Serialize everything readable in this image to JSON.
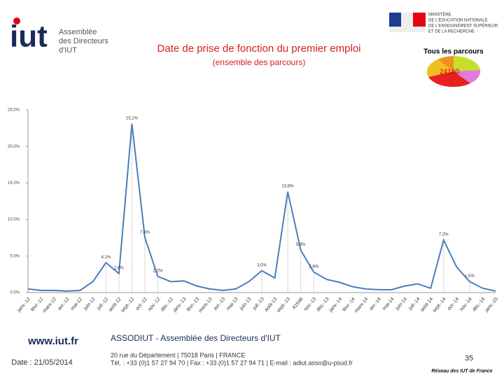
{
  "header": {
    "logo_text": "iut",
    "logo_caption": [
      "Assemblée",
      "des Directeurs",
      "d'IUT"
    ],
    "ministry": [
      "MINISTÈRE",
      "DE L'ÉDUCATION NATIONALE",
      "DE L'ENSEIGNEMENT SUPÉRIEUR",
      "ET DE LA RECHERCHE"
    ]
  },
  "inset": {
    "title": "Tous les parcours",
    "label": "24180"
  },
  "chart_data": {
    "type": "line",
    "title": "Date de prise de fonction du premier emploi",
    "subtitle": "(ensemble des parcours)",
    "categories": [
      "janv.-12",
      "févr.-12",
      "mars-12",
      "avr.-12",
      "mai-12",
      "juin-12",
      "juil.-12",
      "août-12",
      "sept.-12",
      "oct.-12",
      "nov.-12",
      "déc.-12",
      "janv.-13",
      "févr.-13",
      "mars-13",
      "avr.-13",
      "mai-13",
      "juin-13",
      "juil.-13",
      "août-13",
      "sept.-13",
      "41548",
      "nov.-13",
      "déc.-13",
      "janv.-14",
      "févr.-14",
      "mars-14",
      "avr.-14",
      "mai-14",
      "juin-14",
      "juil.-14",
      "août-14",
      "sept.-14",
      "oct.-14",
      "nov.-14",
      "déc.-14",
      "janv.-15"
    ],
    "series": [
      {
        "name": "Tous les parcours",
        "color": "#4a7ebb",
        "values": [
          0.5,
          0.3,
          0.3,
          0.2,
          0.3,
          1.5,
          4.1,
          2.6,
          23.1,
          7.5,
          2.2,
          1.5,
          1.6,
          0.9,
          0.5,
          0.3,
          0.5,
          1.5,
          3.0,
          2.0,
          13.8,
          5.8,
          2.8,
          1.8,
          1.4,
          0.8,
          0.5,
          0.4,
          0.4,
          0.9,
          1.2,
          0.6,
          7.2,
          3.5,
          1.5,
          0.6,
          0.2
        ],
        "value_labels": [
          null,
          null,
          null,
          null,
          null,
          null,
          "4,1%",
          "2,6%",
          "23,1%",
          "7,5%",
          "2,2%",
          null,
          null,
          null,
          null,
          null,
          null,
          null,
          "3,0%",
          null,
          "13,8%",
          "5,8%",
          "2,8%",
          null,
          null,
          null,
          null,
          null,
          null,
          null,
          null,
          null,
          "7,2%",
          null,
          "1,5%",
          null,
          null
        ]
      }
    ],
    "ylim": [
      0,
      25
    ],
    "yticks": [
      {
        "value": 0,
        "label": "0.0%"
      },
      {
        "value": 5,
        "label": "5.0%"
      },
      {
        "value": 10,
        "label": "10.0%"
      },
      {
        "value": 15,
        "label": "15.0%"
      },
      {
        "value": 20,
        "label": "20.0%"
      },
      {
        "value": 25,
        "label": "25.0%"
      }
    ]
  },
  "footer": {
    "site": "www.iut.fr",
    "date": "Date : 21/05/2014",
    "org": "ASSODIUT - Assemblée des Directeurs d'IUT",
    "address": "20 rue du Département | 75018 Paris | FRANCE",
    "contact": "Tél. : +33 (0)1 57 27 94 70 | Fax : +33 (0)1 57 27 94 71 | E-mail : adiut.asso@u-psud.fr",
    "page": "35",
    "network": "Réseau des IUT de France"
  }
}
